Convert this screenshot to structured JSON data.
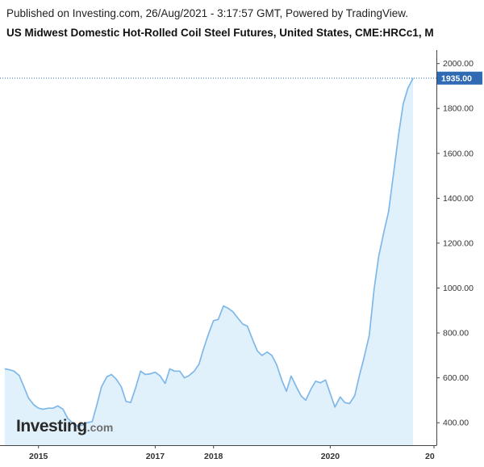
{
  "header": {
    "published": "Published on Investing.com, 26/Aug/2021 - 3:17:57 GMT, Powered by TradingView.",
    "title": "US Midwest Domestic Hot-Rolled Coil Steel Futures, United States, CME:HRCc1, M"
  },
  "logo": {
    "main": "Investing",
    "tld": ".com"
  },
  "colors": {
    "line": "#7fb8e8",
    "area": "#e1f1fc",
    "last_label_bg": "#2f6ab3",
    "axis": "#444444",
    "dotted_line": "#2f6ab3"
  },
  "chart_data": {
    "type": "area",
    "title": "US Midwest Domestic Hot-Rolled Coil Steel Futures, United States, CME:HRCc1, M",
    "xlabel": "",
    "ylabel": "",
    "ylim": [
      300,
      2060
    ],
    "xlim": [
      2014.34,
      2021.82
    ],
    "grid": false,
    "y_ticks": [
      400,
      600,
      800,
      1000,
      1200,
      1400,
      1600,
      1800,
      2000
    ],
    "y_tick_labels": [
      "400.00",
      "600.00",
      "800.00",
      "1000.00",
      "1200.00",
      "1400.00",
      "1600.00",
      "1800.00",
      "2000.00"
    ],
    "x_ticks": [
      2015,
      2017,
      2018,
      2020
    ],
    "x_tick_labels": [
      "2015",
      "2017",
      "2018",
      "2020"
    ],
    "x_clipped_label": "20",
    "last_value": 1935.0,
    "last_value_label": "1935.00",
    "series": [
      {
        "values": [
          [
            2014.42,
            640
          ],
          [
            2014.5,
            636
          ],
          [
            2014.58,
            630
          ],
          [
            2014.67,
            610
          ],
          [
            2014.75,
            560
          ],
          [
            2014.83,
            510
          ],
          [
            2014.92,
            480
          ],
          [
            2015.0,
            465
          ],
          [
            2015.08,
            460
          ],
          [
            2015.17,
            465
          ],
          [
            2015.25,
            465
          ],
          [
            2015.33,
            475
          ],
          [
            2015.42,
            460
          ],
          [
            2015.5,
            420
          ],
          [
            2015.58,
            400
          ],
          [
            2015.67,
            385
          ],
          [
            2015.75,
            390
          ],
          [
            2015.83,
            400
          ],
          [
            2015.92,
            405
          ],
          [
            2016.0,
            480
          ],
          [
            2016.08,
            560
          ],
          [
            2016.17,
            605
          ],
          [
            2016.25,
            615
          ],
          [
            2016.33,
            595
          ],
          [
            2016.42,
            560
          ],
          [
            2016.5,
            495
          ],
          [
            2016.58,
            490
          ],
          [
            2016.67,
            560
          ],
          [
            2016.75,
            630
          ],
          [
            2016.83,
            615
          ],
          [
            2016.92,
            618
          ],
          [
            2017.0,
            625
          ],
          [
            2017.08,
            610
          ],
          [
            2017.17,
            575
          ],
          [
            2017.25,
            640
          ],
          [
            2017.33,
            630
          ],
          [
            2017.42,
            630
          ],
          [
            2017.5,
            600
          ],
          [
            2017.58,
            610
          ],
          [
            2017.67,
            630
          ],
          [
            2017.75,
            660
          ],
          [
            2017.83,
            730
          ],
          [
            2017.92,
            800
          ],
          [
            2018.0,
            855
          ],
          [
            2018.08,
            860
          ],
          [
            2018.17,
            920
          ],
          [
            2018.25,
            910
          ],
          [
            2018.33,
            895
          ],
          [
            2018.42,
            865
          ],
          [
            2018.5,
            840
          ],
          [
            2018.58,
            830
          ],
          [
            2018.67,
            770
          ],
          [
            2018.75,
            720
          ],
          [
            2018.83,
            700
          ],
          [
            2018.92,
            715
          ],
          [
            2019.0,
            700
          ],
          [
            2019.08,
            660
          ],
          [
            2019.17,
            590
          ],
          [
            2019.25,
            540
          ],
          [
            2019.33,
            608
          ],
          [
            2019.42,
            560
          ],
          [
            2019.5,
            520
          ],
          [
            2019.58,
            500
          ],
          [
            2019.67,
            550
          ],
          [
            2019.75,
            585
          ],
          [
            2019.83,
            578
          ],
          [
            2019.92,
            590
          ],
          [
            2020.0,
            530
          ],
          [
            2020.08,
            470
          ],
          [
            2020.17,
            515
          ],
          [
            2020.25,
            490
          ],
          [
            2020.33,
            485
          ],
          [
            2020.42,
            520
          ],
          [
            2020.5,
            610
          ],
          [
            2020.58,
            690
          ],
          [
            2020.67,
            790
          ],
          [
            2020.75,
            990
          ],
          [
            2020.83,
            1140
          ],
          [
            2020.92,
            1250
          ],
          [
            2021.0,
            1340
          ],
          [
            2021.08,
            1500
          ],
          [
            2021.17,
            1680
          ],
          [
            2021.25,
            1820
          ],
          [
            2021.33,
            1890
          ],
          [
            2021.42,
            1935
          ]
        ]
      }
    ]
  }
}
